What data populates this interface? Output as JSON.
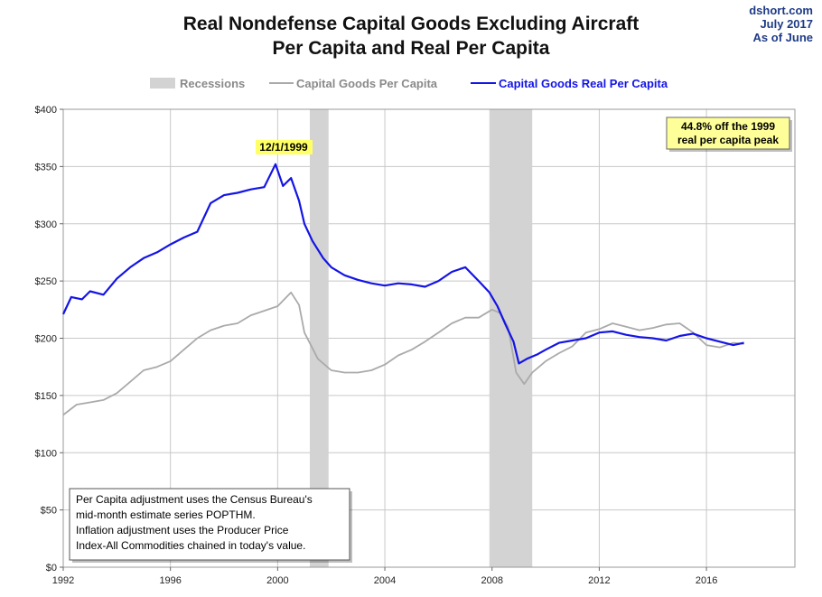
{
  "chart_data": {
    "type": "line",
    "title": "Real Nondefense Capital Goods Excluding Aircraft",
    "subtitle": "Per Capita and Real Per Capita",
    "credit": [
      "dshort.com",
      "July 2017",
      "As of June"
    ],
    "legend": {
      "placement": "top",
      "recessions_label": "Recessions",
      "series1_label": "Capital Goods Per Capita",
      "series2_label": "Capital Goods Real Per Capita"
    },
    "colors": {
      "nominal": "#aaaaaa",
      "real": "#1414e6",
      "recession": "#d3d3d3",
      "grid": "#c8c8c8"
    },
    "x_range": [
      1992.0,
      2019.3
    ],
    "ylim": [
      0,
      400
    ],
    "y_ticks": [
      0,
      50,
      100,
      150,
      200,
      250,
      300,
      350,
      400
    ],
    "y_tick_labels": [
      "$0",
      "$50",
      "$100",
      "$150",
      "$200",
      "$250",
      "$300",
      "$350",
      "$400"
    ],
    "x_ticks": [
      1992,
      1996,
      2000,
      2004,
      2008,
      2012,
      2016
    ],
    "x_tick_labels": [
      "1992",
      "1996",
      "2000",
      "2004",
      "2008",
      "2012",
      "2016"
    ],
    "grid": true,
    "recessions": [
      {
        "start": 2001.2,
        "end": 2001.9
      },
      {
        "start": 2007.9,
        "end": 2009.5
      }
    ],
    "series": [
      {
        "name": "Capital Goods Per Capita",
        "x": [
          1992.0,
          1992.5,
          1993.0,
          1993.5,
          1994.0,
          1994.5,
          1995.0,
          1995.5,
          1996.0,
          1996.5,
          1997.0,
          1997.5,
          1998.0,
          1998.5,
          1999.0,
          1999.5,
          2000.0,
          2000.5,
          2000.8,
          2001.0,
          2001.5,
          2002.0,
          2002.5,
          2003.0,
          2003.5,
          2004.0,
          2004.5,
          2005.0,
          2005.5,
          2006.0,
          2006.5,
          2007.0,
          2007.5,
          2008.0,
          2008.3,
          2008.6,
          2008.9,
          2009.2,
          2009.5,
          2010.0,
          2010.5,
          2011.0,
          2011.5,
          2012.0,
          2012.5,
          2013.0,
          2013.5,
          2014.0,
          2014.5,
          2015.0,
          2015.5,
          2016.0,
          2016.5,
          2017.0,
          2017.4
        ],
        "values": [
          133,
          142,
          144,
          146,
          152,
          162,
          172,
          175,
          180,
          190,
          200,
          207,
          211,
          213,
          220,
          224,
          228,
          240,
          229,
          205,
          182,
          172,
          170,
          170,
          172,
          177,
          185,
          190,
          197,
          205,
          213,
          218,
          218,
          225,
          222,
          210,
          170,
          160,
          170,
          180,
          187,
          193,
          205,
          208,
          213,
          210,
          207,
          209,
          212,
          213,
          205,
          194,
          192,
          196,
          195
        ]
      },
      {
        "name": "Capital Goods Real Per Capita",
        "x": [
          1992.0,
          1992.3,
          1992.7,
          1993.0,
          1993.5,
          1994.0,
          1994.5,
          1995.0,
          1995.5,
          1996.0,
          1996.5,
          1997.0,
          1997.5,
          1998.0,
          1998.5,
          1999.0,
          1999.5,
          1999.92,
          2000.2,
          2000.5,
          2000.8,
          2001.0,
          2001.3,
          2001.7,
          2002.0,
          2002.5,
          2003.0,
          2003.5,
          2004.0,
          2004.5,
          2005.0,
          2005.5,
          2006.0,
          2006.5,
          2007.0,
          2007.5,
          2007.9,
          2008.2,
          2008.5,
          2008.8,
          2009.0,
          2009.3,
          2009.7,
          2010.0,
          2010.5,
          2011.0,
          2011.5,
          2012.0,
          2012.5,
          2013.0,
          2013.5,
          2014.0,
          2014.5,
          2015.0,
          2015.5,
          2016.0,
          2016.5,
          2017.0,
          2017.4
        ],
        "values": [
          221,
          236,
          234,
          241,
          238,
          252,
          262,
          270,
          275,
          282,
          288,
          293,
          318,
          325,
          327,
          330,
          332,
          352,
          333,
          340,
          320,
          300,
          285,
          270,
          262,
          255,
          251,
          248,
          246,
          248,
          247,
          245,
          250,
          258,
          262,
          250,
          240,
          228,
          212,
          197,
          178,
          182,
          186,
          190,
          196,
          198,
          200,
          205,
          206,
          203,
          201,
          200,
          198,
          202,
          204,
          200,
          197,
          194,
          196
        ]
      }
    ],
    "annotations": {
      "peak_label": "12/1/1999",
      "callout_line1": "44.8%  off the 1999",
      "callout_line2": "real per capita peak",
      "note_lines": [
        "Per Capita adjustment uses the Census Bureau's",
        "mid-month estimate series POPTHM.",
        "Inflation adjustment uses the Producer Price",
        "Index-All Commodities chained in today's value."
      ]
    }
  }
}
